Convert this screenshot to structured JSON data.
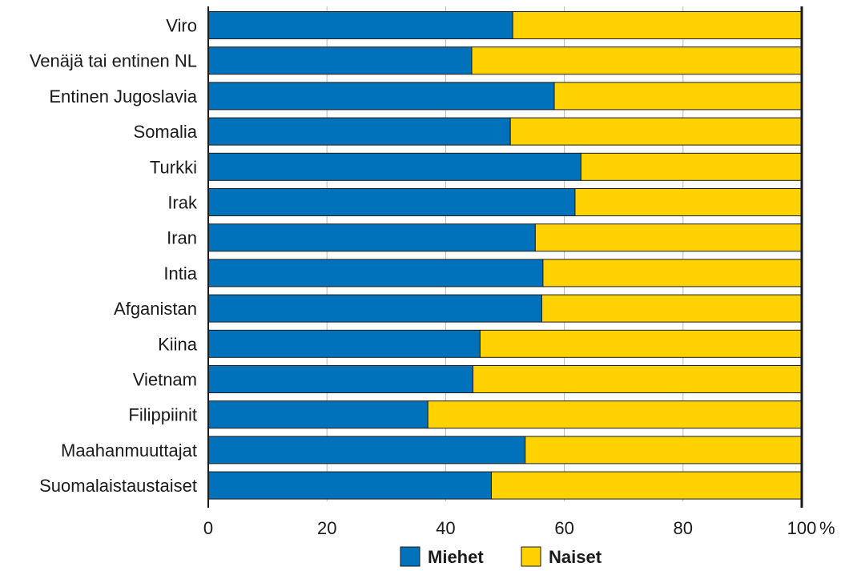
{
  "chart_data": {
    "type": "bar",
    "orientation": "horizontal",
    "stacked": true,
    "categories": [
      "Viro",
      "Venäjä tai entinen NL",
      "Entinen Jugoslavia",
      "Somalia",
      "Turkki",
      "Irak",
      "Iran",
      "Intia",
      "Afganistan",
      "Kiina",
      "Vietnam",
      "Filippiinit",
      "Maahanmuuttajat",
      "Suomalaistaustaiset"
    ],
    "series": [
      {
        "name": "Miehet",
        "color": "#0072bc",
        "values": [
          51.3,
          44.4,
          58.3,
          50.9,
          62.8,
          61.8,
          55.1,
          56.4,
          56.2,
          45.8,
          44.6,
          37.0,
          53.4,
          47.7
        ]
      },
      {
        "name": "Naiset",
        "color": "#ffd200",
        "values": [
          48.7,
          55.6,
          41.7,
          49.1,
          37.2,
          38.2,
          44.9,
          43.6,
          43.8,
          54.2,
          55.4,
          63.0,
          46.6,
          52.3
        ]
      }
    ],
    "xlim": [
      0,
      100
    ],
    "xticks": [
      "0",
      "20",
      "40",
      "60",
      "80",
      "100"
    ],
    "xunit": "%",
    "grid": true,
    "legend_position": "bottom"
  }
}
